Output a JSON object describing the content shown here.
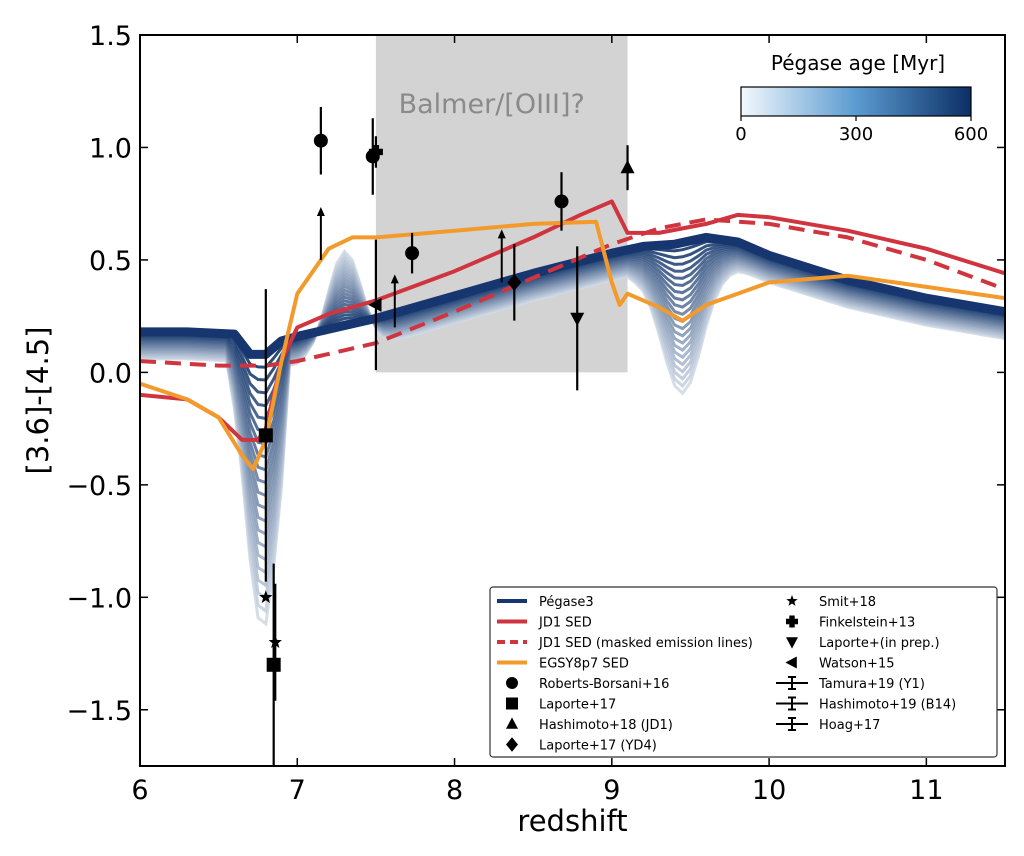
{
  "chart_data": {
    "type": "line",
    "xlabel": "redshift",
    "ylabel": "[3.6]-[4.5]",
    "xlim": [
      6,
      11.5
    ],
    "ylim": [
      -1.75,
      1.5
    ],
    "xticks": [
      "6",
      "7",
      "8",
      "9",
      "10",
      "11"
    ],
    "yticks": [
      "1.5",
      "1.0",
      "0.5",
      "0.0",
      "−0.5",
      "−1.0",
      "−1.5"
    ],
    "grid": false,
    "shaded_region": {
      "x": [
        7.5,
        9.1
      ],
      "y": [
        0,
        1.5
      ],
      "label": "Balmer/[OIII]?",
      "color": "#d3d3d3"
    },
    "colorbar": {
      "title": "Pégase age [Myr]",
      "ticks": [
        "0",
        "300",
        "600"
      ],
      "range": [
        0,
        600
      ],
      "color_low": "#f3f8fd",
      "color_high": "#0b2f66",
      "placement": "top-right"
    },
    "series": [
      {
        "name": "Pégase3",
        "color": "#17366f",
        "style": "solid",
        "x": [
          6.0,
          6.3,
          6.6,
          6.7,
          6.8,
          6.9,
          7.0,
          7.5,
          8.0,
          8.5,
          9.0,
          9.2,
          9.4,
          9.6,
          9.8,
          10.0,
          10.5,
          11.0,
          11.5
        ],
        "y": [
          0.18,
          0.18,
          0.17,
          0.08,
          0.08,
          0.14,
          0.16,
          0.24,
          0.34,
          0.44,
          0.53,
          0.56,
          0.57,
          0.6,
          0.58,
          0.52,
          0.41,
          0.33,
          0.27
        ]
      },
      {
        "name": "JD1 SED",
        "color": "#d0353f",
        "style": "solid",
        "x": [
          6.0,
          6.3,
          6.5,
          6.65,
          6.75,
          6.8,
          6.9,
          7.0,
          7.2,
          7.5,
          8.0,
          8.5,
          8.8,
          9.0,
          9.1,
          9.3,
          9.6,
          9.8,
          10.0,
          10.5,
          11.0,
          11.5
        ],
        "y": [
          -0.1,
          -0.12,
          -0.2,
          -0.3,
          -0.3,
          -0.25,
          0.05,
          0.2,
          0.26,
          0.32,
          0.45,
          0.6,
          0.7,
          0.76,
          0.62,
          0.62,
          0.66,
          0.7,
          0.69,
          0.63,
          0.55,
          0.44
        ]
      },
      {
        "name": "JD1 SED (masked emission lines)",
        "color": "#d0353f",
        "style": "dashed",
        "x": [
          6.0,
          6.5,
          6.8,
          7.0,
          7.5,
          8.0,
          8.5,
          9.0,
          9.3,
          9.6,
          10.0,
          10.5,
          11.0,
          11.5
        ],
        "y": [
          0.05,
          0.03,
          0.03,
          0.05,
          0.13,
          0.27,
          0.42,
          0.57,
          0.64,
          0.68,
          0.66,
          0.6,
          0.5,
          0.37
        ]
      },
      {
        "name": "EGSY8p7 SED",
        "color": "#f39a2c",
        "style": "solid",
        "x": [
          6.0,
          6.3,
          6.5,
          6.65,
          6.72,
          6.8,
          6.9,
          7.0,
          7.2,
          7.35,
          7.5,
          8.0,
          8.5,
          8.9,
          9.0,
          9.05,
          9.1,
          9.3,
          9.45,
          9.6,
          9.8,
          10.0,
          10.5,
          11.0,
          11.5
        ],
        "y": [
          -0.05,
          -0.12,
          -0.2,
          -0.37,
          -0.43,
          -0.3,
          0.05,
          0.35,
          0.55,
          0.6,
          0.6,
          0.63,
          0.66,
          0.67,
          0.4,
          0.3,
          0.35,
          0.29,
          0.23,
          0.3,
          0.35,
          0.4,
          0.43,
          0.38,
          0.33
        ]
      }
    ],
    "points": [
      {
        "x": 7.15,
        "y": 1.03,
        "marker": "circle",
        "err": 0.15,
        "arrow": false
      },
      {
        "x": 7.48,
        "y": 0.96,
        "marker": "circle",
        "err": 0.17,
        "arrow": false
      },
      {
        "x": 7.73,
        "y": 0.53,
        "marker": "circle",
        "err": 0.09,
        "arrow": false
      },
      {
        "x": 8.68,
        "y": 0.76,
        "marker": "circle",
        "err": 0.13,
        "arrow": false
      },
      {
        "x": 6.8,
        "y": -0.28,
        "marker": "square",
        "err": 0.65,
        "arrow": false
      },
      {
        "x": 6.85,
        "y": -1.3,
        "marker": "square",
        "err": 0.45,
        "arrow": false
      },
      {
        "x": 9.1,
        "y": 0.91,
        "marker": "triangle",
        "err": 0.1,
        "arrow": false
      },
      {
        "x": 8.38,
        "y": 0.4,
        "marker": "diamond",
        "err": 0.17,
        "arrow": false
      },
      {
        "x": 6.8,
        "y": -1.0,
        "marker": "star",
        "err": 0,
        "arrow": false
      },
      {
        "x": 6.86,
        "y": -1.2,
        "marker": "star",
        "err": 0.26,
        "arrow": false
      },
      {
        "x": 7.5,
        "y": 0.98,
        "marker": "cross",
        "err": 0.07,
        "arrow": false
      },
      {
        "x": 8.78,
        "y": 0.24,
        "marker": "triangle-down",
        "err": 0.32,
        "arrow": false
      },
      {
        "x": 7.5,
        "y": 0.3,
        "marker": "triangle-left",
        "err": 0.29,
        "arrow": false
      },
      {
        "x": 7.15,
        "y": 0.5,
        "marker": "none",
        "err": 0,
        "arrow": true
      },
      {
        "x": 7.62,
        "y": 0.2,
        "marker": "none",
        "err": 0,
        "arrow": true
      },
      {
        "x": 8.3,
        "y": 0.4,
        "marker": "none",
        "err": 0,
        "arrow": true
      }
    ],
    "legend": {
      "placement": "lower-right",
      "left": [
        {
          "label": "Pégase3",
          "symbol": "line",
          "color": "#17366f"
        },
        {
          "label": "JD1 SED",
          "symbol": "line",
          "color": "#d0353f"
        },
        {
          "label": "JD1 SED (masked emission lines)",
          "symbol": "dashed",
          "color": "#d0353f"
        },
        {
          "label": "EGSY8p7 SED",
          "symbol": "line",
          "color": "#f39a2c"
        },
        {
          "label": "Roberts-Borsani+16",
          "symbol": "circle",
          "color": "#000000"
        },
        {
          "label": "Laporte+17",
          "symbol": "square",
          "color": "#000000"
        },
        {
          "label": "Hashimoto+18 (JD1)",
          "symbol": "triangle",
          "color": "#000000"
        },
        {
          "label": "Laporte+17 (YD4)",
          "symbol": "diamond",
          "color": "#000000"
        }
      ],
      "right": [
        {
          "label": "Smit+18",
          "symbol": "star",
          "color": "#000000"
        },
        {
          "label": "Finkelstein+13",
          "symbol": "cross",
          "color": "#000000"
        },
        {
          "label": "Laporte+(in prep.)",
          "symbol": "triangle-down",
          "color": "#000000"
        },
        {
          "label": "Watson+15",
          "symbol": "triangle-left",
          "color": "#000000"
        },
        {
          "label": "Tamura+19 (Y1)",
          "symbol": "errorbar",
          "color": "#000000"
        },
        {
          "label": "Hashimoto+19 (B14)",
          "symbol": "errorbar",
          "color": "#000000"
        },
        {
          "label": "Hoag+17",
          "symbol": "errorbar",
          "color": "#000000"
        }
      ]
    }
  }
}
